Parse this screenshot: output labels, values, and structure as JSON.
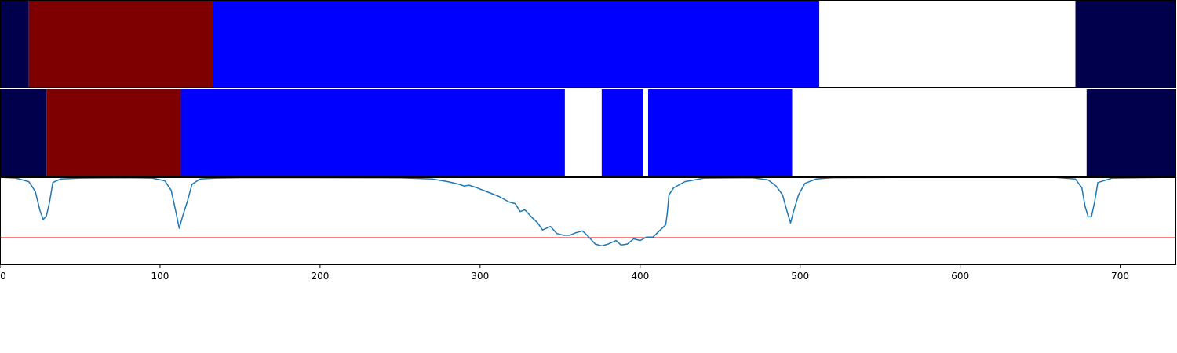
{
  "chart_data": {
    "type": "line",
    "title": "",
    "xlabel": "",
    "ylabel": "",
    "xlim": [
      0,
      735
    ],
    "xticks": [
      0,
      100,
      200,
      300,
      400,
      500,
      600,
      700
    ],
    "grid": false,
    "legend": "none",
    "colors": {
      "dark_navy": "#00004c",
      "dark_red": "#7f0000",
      "blue": "#0000ff",
      "empty": "#ffffff",
      "curve": "#1f77b4",
      "threshold": "#ff0000",
      "frame": "#000000"
    },
    "strips": [
      {
        "segments": [
          {
            "start": 0,
            "end": 18,
            "class": "dark_navy"
          },
          {
            "start": 18,
            "end": 133,
            "class": "dark_red"
          },
          {
            "start": 133,
            "end": 512,
            "class": "blue"
          },
          {
            "start": 512,
            "end": 672,
            "class": "empty"
          },
          {
            "start": 672,
            "end": 735,
            "class": "dark_navy"
          }
        ]
      },
      {
        "segments": [
          {
            "start": 0,
            "end": 29,
            "class": "dark_navy"
          },
          {
            "start": 29,
            "end": 113,
            "class": "dark_red"
          },
          {
            "start": 113,
            "end": 353,
            "class": "blue"
          },
          {
            "start": 353,
            "end": 376,
            "class": "empty"
          },
          {
            "start": 376,
            "end": 402,
            "class": "blue"
          },
          {
            "start": 402,
            "end": 405,
            "class": "empty"
          },
          {
            "start": 405,
            "end": 495,
            "class": "blue"
          },
          {
            "start": 495,
            "end": 679,
            "class": "empty"
          },
          {
            "start": 679,
            "end": 735,
            "class": "dark_navy"
          }
        ]
      }
    ],
    "curve": {
      "ylim": [
        1.0,
        0.0
      ],
      "threshold": 0.69,
      "points": [
        [
          0,
          0.0
        ],
        [
          10,
          0.01
        ],
        [
          18,
          0.05
        ],
        [
          22,
          0.16
        ],
        [
          25,
          0.38
        ],
        [
          27,
          0.48
        ],
        [
          29,
          0.44
        ],
        [
          31,
          0.28
        ],
        [
          33,
          0.06
        ],
        [
          38,
          0.02
        ],
        [
          50,
          0.01
        ],
        [
          80,
          0.005
        ],
        [
          95,
          0.01
        ],
        [
          103,
          0.04
        ],
        [
          107,
          0.15
        ],
        [
          110,
          0.4
        ],
        [
          112,
          0.58
        ],
        [
          114,
          0.45
        ],
        [
          117,
          0.28
        ],
        [
          120,
          0.08
        ],
        [
          125,
          0.02
        ],
        [
          135,
          0.01
        ],
        [
          150,
          0.005
        ],
        [
          200,
          0.005
        ],
        [
          250,
          0.007
        ],
        [
          270,
          0.02
        ],
        [
          280,
          0.05
        ],
        [
          287,
          0.08
        ],
        [
          290,
          0.1
        ],
        [
          293,
          0.09
        ],
        [
          298,
          0.12
        ],
        [
          305,
          0.17
        ],
        [
          312,
          0.22
        ],
        [
          318,
          0.28
        ],
        [
          322,
          0.3
        ],
        [
          325,
          0.39
        ],
        [
          328,
          0.37
        ],
        [
          332,
          0.45
        ],
        [
          336,
          0.52
        ],
        [
          339,
          0.6
        ],
        [
          344,
          0.56
        ],
        [
          348,
          0.64
        ],
        [
          352,
          0.66
        ],
        [
          356,
          0.66
        ],
        [
          360,
          0.63
        ],
        [
          364,
          0.61
        ],
        [
          368,
          0.68
        ],
        [
          372,
          0.76
        ],
        [
          376,
          0.78
        ],
        [
          380,
          0.76
        ],
        [
          385,
          0.72
        ],
        [
          388,
          0.77
        ],
        [
          392,
          0.76
        ],
        [
          396,
          0.7
        ],
        [
          400,
          0.72
        ],
        [
          404,
          0.68
        ],
        [
          408,
          0.68
        ],
        [
          412,
          0.61
        ],
        [
          416,
          0.54
        ],
        [
          417,
          0.4
        ],
        [
          418,
          0.2
        ],
        [
          421,
          0.12
        ],
        [
          428,
          0.05
        ],
        [
          440,
          0.01
        ],
        [
          470,
          0.005
        ],
        [
          480,
          0.03
        ],
        [
          485,
          0.1
        ],
        [
          489,
          0.2
        ],
        [
          492,
          0.4
        ],
        [
          494,
          0.52
        ],
        [
          496,
          0.38
        ],
        [
          499,
          0.2
        ],
        [
          503,
          0.07
        ],
        [
          510,
          0.02
        ],
        [
          520,
          0.005
        ],
        [
          560,
          0.003
        ],
        [
          660,
          0.003
        ],
        [
          672,
          0.02
        ],
        [
          676,
          0.12
        ],
        [
          678,
          0.33
        ],
        [
          680,
          0.45
        ],
        [
          682,
          0.45
        ],
        [
          684,
          0.28
        ],
        [
          686,
          0.06
        ],
        [
          695,
          0.01
        ],
        [
          735,
          0.0
        ]
      ]
    }
  }
}
